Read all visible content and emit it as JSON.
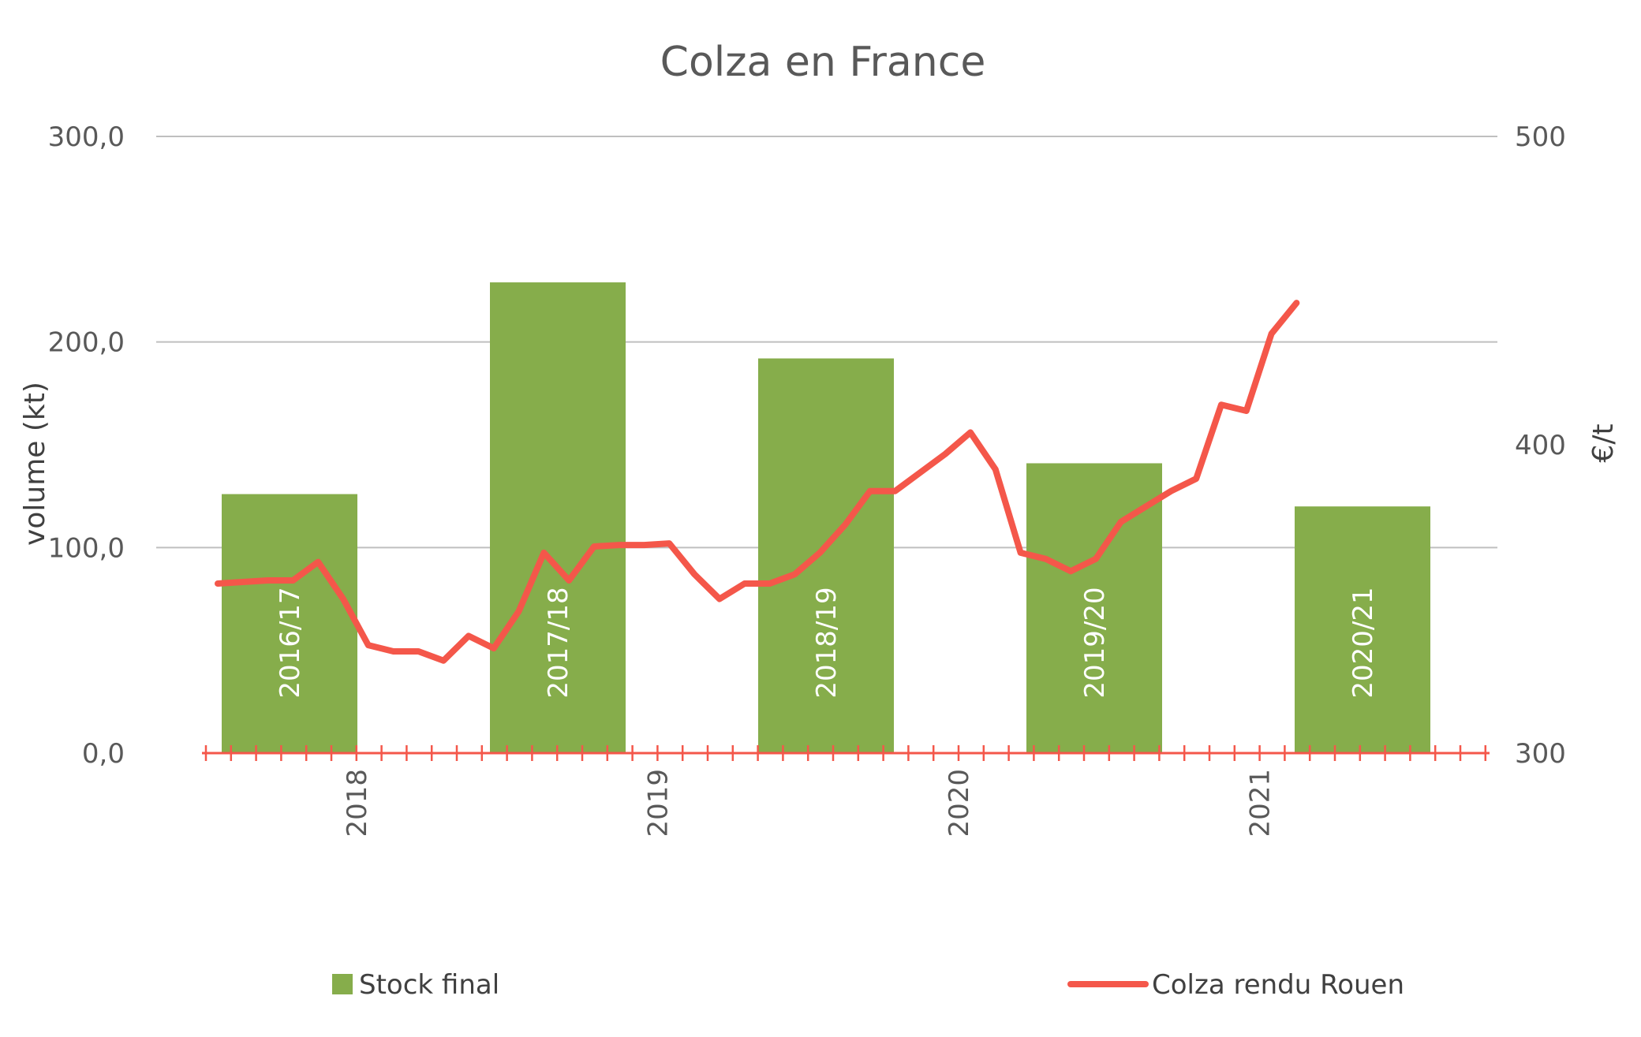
{
  "chart_data": {
    "type": "bar+line",
    "title": "Colza en France",
    "ylabel_left": "volume  (kt)",
    "ylabel_right": "€/t",
    "ylim_left": [
      0,
      300
    ],
    "ylim_right": [
      300,
      500
    ],
    "yticks_left": [
      "0,0",
      "100,0",
      "200,0",
      "300,0"
    ],
    "yticks_right": [
      "300",
      "400",
      "500"
    ],
    "xticks": [
      "2018",
      "2019",
      "2020",
      "2021"
    ],
    "grid": true,
    "legend_position": "bottom",
    "colors": {
      "bars": "#86AD4B",
      "line": "#F4574A",
      "grid": "#BFBFBF"
    },
    "bars": {
      "name": "Stock final",
      "categories": [
        "2016/17",
        "2017/18",
        "2018/19",
        "2019/20",
        "2020/21"
      ],
      "values": [
        126,
        229,
        192,
        141,
        120
      ]
    },
    "line": {
      "name": "Colza rendu Rouen",
      "values": [
        355,
        355.5,
        356,
        356,
        362,
        350,
        335,
        333,
        333,
        330,
        338,
        334,
        346,
        365,
        356,
        367,
        367.5,
        367.5,
        368,
        358,
        350,
        355,
        355,
        358,
        365,
        374,
        385,
        385,
        391,
        397,
        404,
        392,
        365,
        363,
        359,
        363,
        375,
        380,
        385,
        389,
        413,
        411,
        436,
        446
      ]
    }
  },
  "legend": {
    "bars_label": "Stock final",
    "line_label": "Colza rendu Rouen"
  }
}
